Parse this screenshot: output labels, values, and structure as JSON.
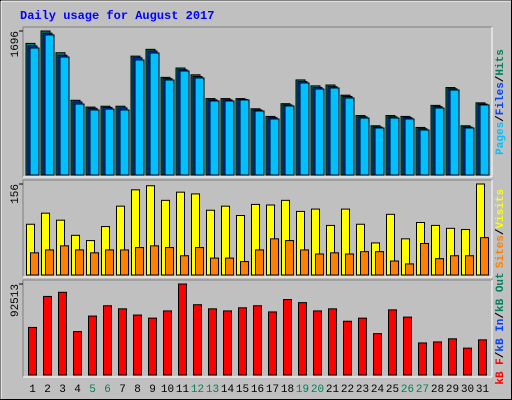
{
  "chart_data": [
    {
      "type": "bar",
      "title": "Daily usage for August 2017",
      "ylim": [
        0,
        1696
      ],
      "yticks": [
        1696
      ],
      "legend_separator": "/",
      "series": [
        {
          "name": "Hits",
          "color": "#00805c",
          "values": [
            1550,
            1696,
            1440,
            880,
            800,
            810,
            810,
            1400,
            1480,
            1150,
            1260,
            1180,
            900,
            900,
            900,
            780,
            690,
            840,
            1120,
            1050,
            1060,
            940,
            700,
            580,
            700,
            690,
            560,
            820,
            1030,
            580,
            850
          ]
        },
        {
          "name": "Files",
          "color": "#0040ff",
          "values": [
            1520,
            1670,
            1410,
            860,
            785,
            795,
            790,
            1380,
            1460,
            1135,
            1240,
            1160,
            885,
            885,
            890,
            765,
            675,
            825,
            1100,
            1030,
            1040,
            925,
            685,
            565,
            685,
            675,
            545,
            805,
            1015,
            565,
            835
          ]
        },
        {
          "name": "Pages",
          "color": "#00c0ff",
          "values": [
            1496,
            1650,
            1390,
            836,
            766,
            777,
            766,
            1355,
            1437,
            1119,
            1225,
            1143,
            872,
            872,
            884,
            754,
            660,
            813,
            1084,
            1013,
            1025,
            907,
            671,
            554,
            671,
            660,
            530,
            789,
            1001,
            554,
            825
          ]
        }
      ]
    },
    {
      "type": "bar",
      "ylim": [
        0,
        156
      ],
      "yticks": [
        156
      ],
      "legend_separator": "/",
      "series": [
        {
          "name": "Visits",
          "color": "#ffff00",
          "values": [
            87,
            106,
            94,
            68,
            59,
            83,
            118,
            146,
            153,
            128,
            142,
            139,
            111,
            118,
            102,
            121,
            120,
            128,
            109,
            113,
            85,
            113,
            87,
            55,
            104,
            62,
            90,
            85,
            80,
            78,
            156
          ]
        },
        {
          "name": "Sites",
          "color": "#ff8000",
          "values": [
            38,
            43,
            50,
            43,
            38,
            43,
            43,
            47,
            50,
            47,
            33,
            47,
            29,
            29,
            23,
            43,
            62,
            59,
            43,
            36,
            38,
            36,
            40,
            40,
            24,
            19,
            54,
            28,
            33,
            33,
            64
          ]
        }
      ]
    },
    {
      "type": "bar",
      "ylim": [
        0,
        92513
      ],
      "yticks": [
        92513
      ],
      "legend_separator": "/",
      "categories": [
        "1",
        "2",
        "3",
        "4",
        "5",
        "6",
        "7",
        "8",
        "9",
        "10",
        "11",
        "12",
        "13",
        "14",
        "15",
        "16",
        "17",
        "18",
        "19",
        "20",
        "21",
        "22",
        "23",
        "24",
        "25",
        "26",
        "27",
        "28",
        "29",
        "30",
        "31"
      ],
      "category_colors": [
        "#000000",
        "#000000",
        "#000000",
        "#000000",
        "#00805c",
        "#00805c",
        "#000000",
        "#000000",
        "#000000",
        "#000000",
        "#000000",
        "#00805c",
        "#00805c",
        "#000000",
        "#000000",
        "#000000",
        "#000000",
        "#000000",
        "#00805c",
        "#00805c",
        "#000000",
        "#000000",
        "#000000",
        "#000000",
        "#000000",
        "#00805c",
        "#00805c",
        "#000000",
        "#000000",
        "#000000",
        "#000000"
      ],
      "series": [
        {
          "name": "kB Out",
          "color": "#00805c"
        },
        {
          "name": "kB In",
          "color": "#0040ff"
        },
        {
          "name": "kB F",
          "color": "#ff0000",
          "values": [
            48346,
            79876,
            84080,
            44142,
            59907,
            70417,
            67264,
            60958,
            57805,
            65162,
            92513,
            71468,
            67264,
            65162,
            68315,
            70417,
            64111,
            76723,
            73570,
            65162,
            67264,
            54652,
            57805,
            42040,
            66213,
            58856,
            32581,
            33632,
            36785,
            27326,
            35734
          ]
        }
      ]
    }
  ]
}
